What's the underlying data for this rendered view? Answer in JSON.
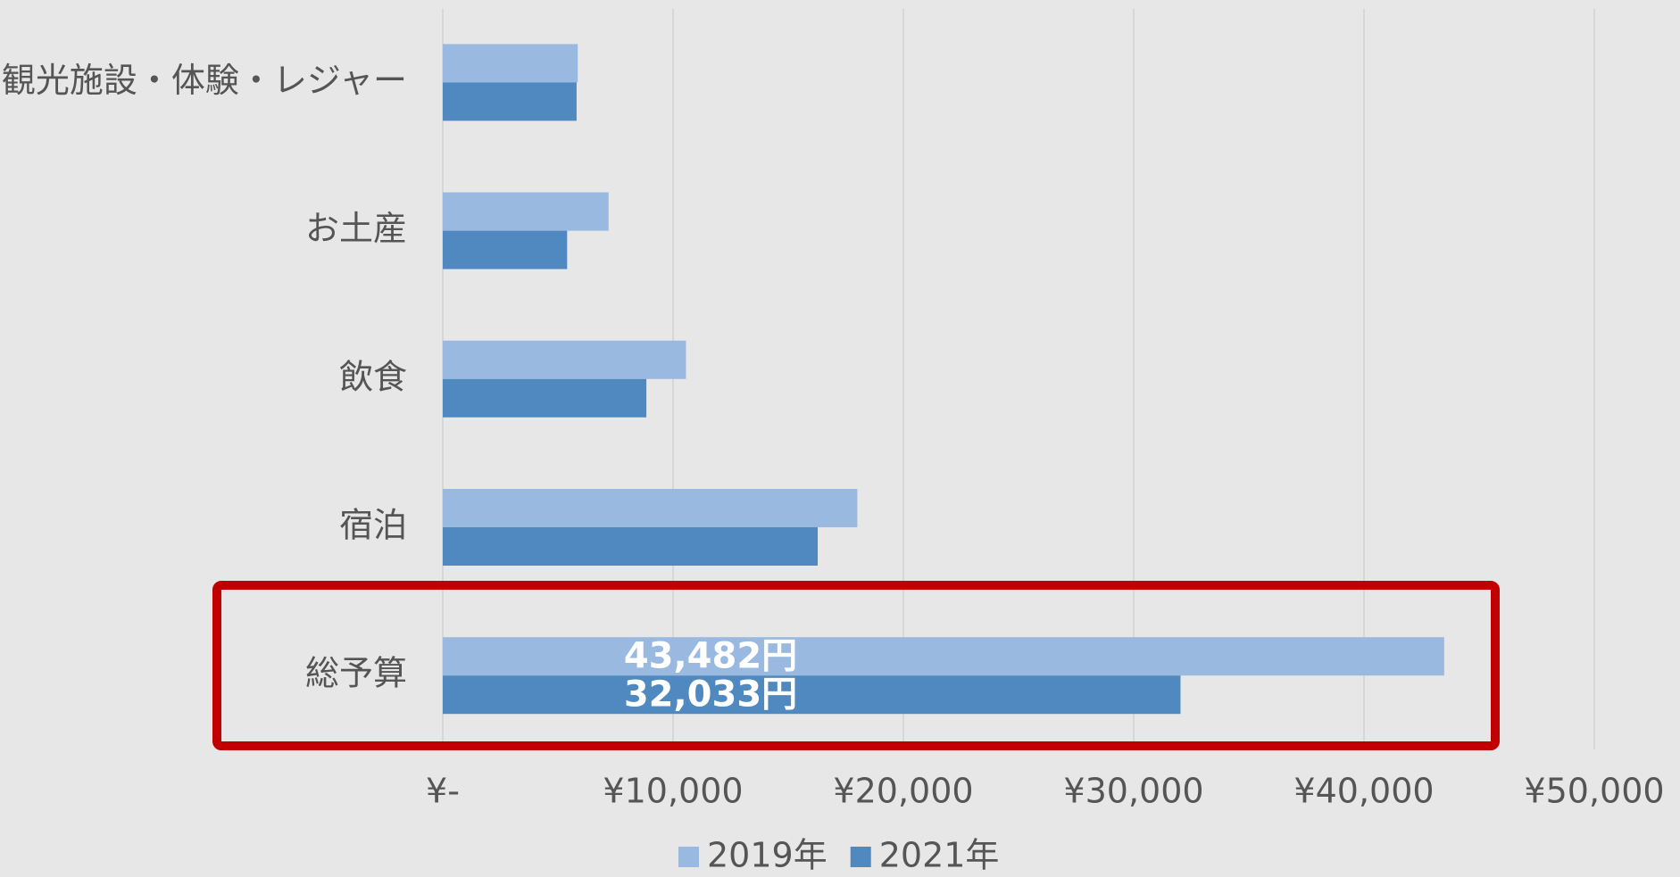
{
  "chart_data": {
    "type": "barh",
    "categories": [
      "観光施設・体験・レジャー",
      "お土産",
      "飲食",
      "宿泊",
      "総予算"
    ],
    "series": [
      {
        "name": "2019年",
        "color": "#99b9e0",
        "values": [
          5860,
          7200,
          10560,
          18000,
          43482
        ],
        "value_labels": [
          null,
          null,
          null,
          null,
          "43,482円"
        ]
      },
      {
        "name": "2021年",
        "color": "#4f89c0",
        "values": [
          5810,
          5400,
          8840,
          16280,
          32033
        ],
        "value_labels": [
          null,
          null,
          null,
          null,
          "32,033円"
        ]
      }
    ],
    "xlim": [
      0,
      50000
    ],
    "xticks": [
      {
        "value": 0,
        "label": "¥-"
      },
      {
        "value": 10000,
        "label": "¥10,000"
      },
      {
        "value": 20000,
        "label": "¥20,000"
      },
      {
        "value": 30000,
        "label": "¥30,000"
      },
      {
        "value": 40000,
        "label": "¥40,000"
      },
      {
        "value": 50000,
        "label": "¥50,000"
      }
    ],
    "grid": true,
    "legend": "bottom"
  }
}
